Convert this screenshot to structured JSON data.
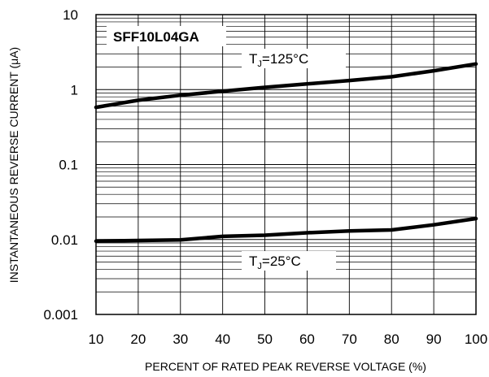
{
  "chart_data": {
    "type": "line",
    "title": "SFF10L04GA",
    "xlabel": "PERCENT OF RATED PEAK REVERSE VOLTAGE (%)",
    "ylabel": "INSTANTANEOUS REVERSE CURRENT (μA)",
    "xlim": [
      10,
      100
    ],
    "ylim": [
      0.001,
      10
    ],
    "yscale": "log",
    "grid": true,
    "x_ticks": [
      10,
      20,
      30,
      40,
      50,
      60,
      70,
      80,
      90,
      100
    ],
    "y_ticks": [
      "10",
      "1",
      "0.1",
      "0.01",
      "0.001"
    ],
    "series": [
      {
        "name": "TJ=125°C",
        "label_main": "T",
        "label_sub": "J",
        "label_rest": "=125°C",
        "x": [
          10,
          20,
          30,
          40,
          50,
          60,
          70,
          80,
          90,
          100
        ],
        "y": [
          0.58,
          0.72,
          0.84,
          0.95,
          1.07,
          1.19,
          1.32,
          1.48,
          1.78,
          2.2
        ]
      },
      {
        "name": "TJ=25°C",
        "label_main": "T",
        "label_sub": "J",
        "label_rest": "=25°C",
        "x": [
          10,
          20,
          30,
          40,
          50,
          60,
          70,
          80,
          90,
          100
        ],
        "y": [
          0.0095,
          0.0097,
          0.0099,
          0.011,
          0.0114,
          0.0123,
          0.013,
          0.0134,
          0.0157,
          0.019
        ]
      }
    ]
  }
}
